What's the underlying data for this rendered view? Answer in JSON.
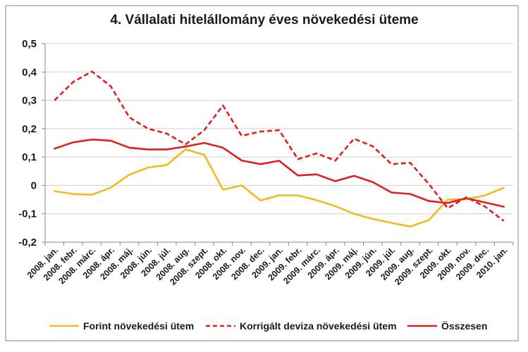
{
  "chart_data": {
    "type": "line",
    "title": "4. Vállalati hitelállomány éves növekedési üteme",
    "xlabel": "",
    "ylabel": "",
    "ylim": [
      -0.2,
      0.5
    ],
    "yticks": [
      "0,5",
      "0,4",
      "0,3",
      "0,2",
      "0,1",
      "0",
      "-0,1",
      "-0,2"
    ],
    "ytick_values": [
      0.5,
      0.4,
      0.3,
      0.2,
      0.1,
      0,
      -0.1,
      -0.2
    ],
    "grid": true,
    "legend_position": "bottom",
    "categories": [
      "2008. jan.",
      "2008. febr.",
      "2008. márc.",
      "2008. ápr.",
      "2008. máj.",
      "2008. jún.",
      "2008. júl.",
      "2008. aug.",
      "2008. szept.",
      "2008. okt.",
      "2008. nov.",
      "2008. dec.",
      "2009. jan.",
      "2009. febr.",
      "2009. márc.",
      "2009. ápr.",
      "2009. máj.",
      "2009. jún.",
      "2009. júl.",
      "2009. aug.",
      "2009. szept.",
      "2009. okt.",
      "2009. nov.",
      "2009. dec.",
      "2010. jan."
    ],
    "series": [
      {
        "name": "Forint növekedési ütem",
        "color": "#f5b920",
        "dash": "solid",
        "values": [
          -0.02,
          -0.03,
          -0.033,
          -0.008,
          0.038,
          0.063,
          0.072,
          0.127,
          0.108,
          -0.015,
          0.0,
          -0.053,
          -0.035,
          -0.035,
          -0.052,
          -0.073,
          -0.1,
          -0.118,
          -0.132,
          -0.145,
          -0.122,
          -0.05,
          -0.048,
          -0.035,
          -0.008
        ]
      },
      {
        "name": "Korrigált deviza növekedési ütem",
        "color": "#e02020",
        "dash": "dashed",
        "values": [
          0.3,
          0.365,
          0.402,
          0.35,
          0.24,
          0.2,
          0.183,
          0.145,
          0.195,
          0.282,
          0.175,
          0.19,
          0.195,
          0.093,
          0.113,
          0.088,
          0.165,
          0.138,
          0.075,
          0.08,
          0.005,
          -0.08,
          -0.042,
          -0.075,
          -0.125
        ]
      },
      {
        "name": "Összesen",
        "color": "#e02020",
        "dash": "solid",
        "values": [
          0.13,
          0.152,
          0.162,
          0.158,
          0.133,
          0.127,
          0.127,
          0.137,
          0.15,
          0.133,
          0.088,
          0.075,
          0.087,
          0.035,
          0.039,
          0.015,
          0.034,
          0.012,
          -0.025,
          -0.03,
          -0.055,
          -0.062,
          -0.045,
          -0.06,
          -0.075
        ]
      }
    ]
  }
}
